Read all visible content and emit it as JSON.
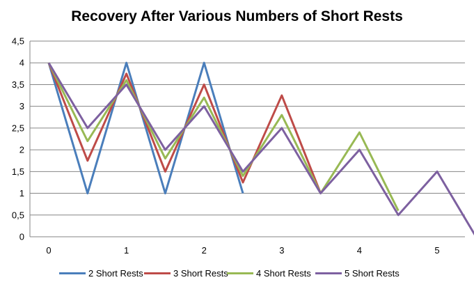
{
  "chart_data": {
    "type": "line",
    "title": "Recovery After Various Numbers of Short Rests",
    "xlabel": "",
    "ylabel": "",
    "ylim": [
      0,
      4.5
    ],
    "xlim": [
      0,
      5.6
    ],
    "y_ticks": [
      "0",
      "0,5",
      "1",
      "1,5",
      "2",
      "2,5",
      "3",
      "3,5",
      "4",
      "4,5"
    ],
    "x_ticks": [
      "0",
      "1",
      "2",
      "3",
      "4",
      "5"
    ],
    "grid": "horizontal",
    "legend_position": "bottom",
    "series": [
      {
        "name": "2 Short Rests",
        "color": "#4a7ebb",
        "points": [
          [
            0,
            4
          ],
          [
            0.5,
            1
          ],
          [
            1,
            4
          ],
          [
            1.5,
            1
          ],
          [
            2,
            4
          ],
          [
            2.5,
            1
          ]
        ]
      },
      {
        "name": "3 Short Rests",
        "color": "#be4b48",
        "points": [
          [
            0,
            4
          ],
          [
            0.5,
            1.75
          ],
          [
            1,
            3.75
          ],
          [
            1.5,
            1.5
          ],
          [
            2,
            3.5
          ],
          [
            2.5,
            1.25
          ],
          [
            3,
            3.25
          ],
          [
            3.5,
            1
          ]
        ]
      },
      {
        "name": "4 Short Rests",
        "color": "#98b954",
        "points": [
          [
            0,
            4
          ],
          [
            0.5,
            2.2
          ],
          [
            1,
            3.6
          ],
          [
            1.5,
            1.8
          ],
          [
            2,
            3.2
          ],
          [
            2.5,
            1.4
          ],
          [
            3,
            2.8
          ],
          [
            3.5,
            1
          ],
          [
            4,
            2.4
          ],
          [
            4.5,
            0.6
          ]
        ]
      },
      {
        "name": "5 Short Rests",
        "color": "#7d60a0",
        "points": [
          [
            0,
            4
          ],
          [
            0.5,
            2.5
          ],
          [
            1,
            3.5
          ],
          [
            1.5,
            2
          ],
          [
            2,
            3
          ],
          [
            2.5,
            1.5
          ],
          [
            3,
            2.5
          ],
          [
            3.5,
            1
          ],
          [
            4,
            2
          ],
          [
            4.5,
            0.5
          ],
          [
            5,
            1.5
          ],
          [
            5.5,
            0
          ]
        ]
      }
    ]
  }
}
